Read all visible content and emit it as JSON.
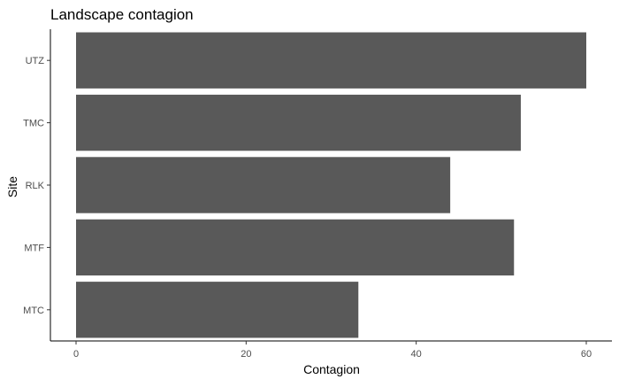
{
  "chart_data": {
    "type": "bar",
    "orientation": "horizontal",
    "title": "Landscape contagion",
    "xlabel": "Contagion",
    "ylabel": "Site",
    "categories": [
      "MTC",
      "MTF",
      "RLK",
      "TMC",
      "UTZ"
    ],
    "values": [
      33.2,
      51.5,
      44.0,
      52.3,
      60.0
    ],
    "xlim": [
      0,
      61
    ],
    "xticks": [
      0,
      20,
      40,
      60
    ],
    "grid": false,
    "legend": "none",
    "bar_color": "#595959"
  }
}
